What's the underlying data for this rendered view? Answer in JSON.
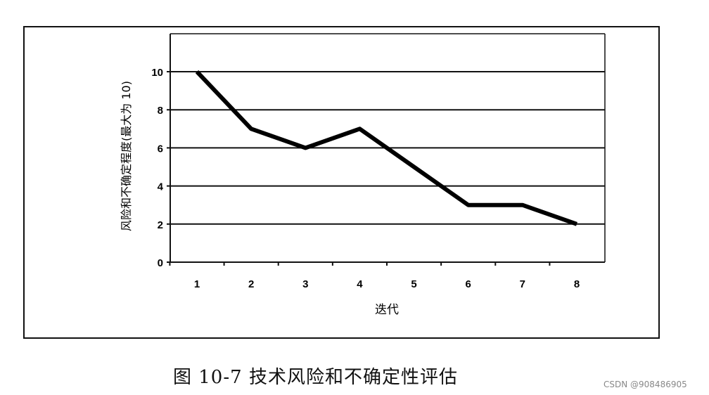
{
  "chart_data": {
    "type": "line",
    "xlabel": "迭代",
    "ylabel": "风险和不确定程度(最大为 10)",
    "categories": [
      "1",
      "2",
      "3",
      "4",
      "5",
      "6",
      "7",
      "8"
    ],
    "values": [
      10,
      7,
      6,
      7,
      5,
      3,
      3,
      2
    ],
    "ylim": [
      0,
      10
    ],
    "yticks": [
      "0",
      "2",
      "4",
      "6",
      "8",
      "10"
    ],
    "grid": "horizontal",
    "line_color": "#000000"
  },
  "caption": "图 10-7   技术风险和不确定性评估",
  "watermark": "CSDN @908486905"
}
